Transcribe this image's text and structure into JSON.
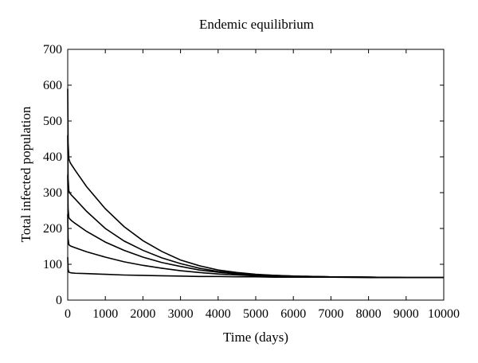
{
  "chart_data": {
    "type": "line",
    "title": "Endemic equilibrium",
    "xlabel": "Time  (days)",
    "ylabel": "Total  infected  population",
    "xlim": [
      0,
      10000
    ],
    "ylim": [
      0,
      700
    ],
    "xticks": [
      0,
      1000,
      2000,
      3000,
      4000,
      5000,
      6000,
      7000,
      8000,
      9000,
      10000
    ],
    "yticks": [
      0,
      100,
      200,
      300,
      400,
      500,
      600,
      700
    ],
    "grid": false,
    "series": [
      {
        "x": [
          0,
          10,
          30,
          60,
          100,
          200,
          500,
          1000,
          1500,
          2000,
          2500,
          3000,
          3500,
          4000,
          4500,
          5000,
          5500,
          6000,
          7000,
          8000,
          9000,
          10000
        ],
        "y": [
          590,
          440,
          395,
          385,
          378,
          362,
          317,
          255,
          205,
          166,
          136,
          112,
          96,
          84,
          77,
          72,
          69,
          67,
          65,
          64,
          63,
          63
        ]
      },
      {
        "x": [
          0,
          10,
          30,
          60,
          100,
          200,
          500,
          1000,
          1500,
          2000,
          2500,
          3000,
          3500,
          4000,
          4500,
          5000,
          5500,
          6000,
          7000,
          8000,
          9000,
          10000
        ],
        "y": [
          460,
          340,
          305,
          298,
          293,
          282,
          248,
          200,
          165,
          139,
          118,
          102,
          89,
          80,
          75,
          71,
          69,
          67,
          65,
          64,
          63,
          63
        ]
      },
      {
        "x": [
          0,
          10,
          30,
          60,
          100,
          200,
          500,
          1000,
          1500,
          2000,
          2500,
          3000,
          3500,
          4000,
          4500,
          5000,
          5500,
          6000,
          7000,
          8000,
          9000,
          10000
        ],
        "y": [
          350,
          255,
          230,
          226,
          222,
          214,
          192,
          162,
          139,
          120,
          105,
          94,
          84,
          78,
          73,
          70,
          68,
          66,
          65,
          64,
          63,
          63
        ]
      },
      {
        "x": [
          0,
          10,
          30,
          60,
          100,
          200,
          500,
          1000,
          1500,
          2000,
          2500,
          3000,
          3500,
          4000,
          4500,
          5000,
          5500,
          6000,
          7000,
          8000,
          9000,
          10000
        ],
        "y": [
          240,
          172,
          155,
          152,
          150,
          146,
          135,
          120,
          107,
          97,
          89,
          82,
          77,
          73,
          70,
          68,
          67,
          66,
          65,
          64,
          63,
          63
        ]
      },
      {
        "x": [
          0,
          10,
          30,
          60,
          100,
          200,
          500,
          1000,
          1500,
          2000,
          2500,
          3000,
          3500,
          4000,
          4500,
          5000,
          5500,
          6000,
          7000,
          8000,
          9000,
          10000
        ],
        "y": [
          120,
          86,
          78,
          77,
          76,
          75,
          74,
          72,
          70,
          69,
          68,
          67,
          66,
          66,
          65,
          65,
          64,
          64,
          64,
          63,
          63,
          63
        ]
      }
    ]
  }
}
